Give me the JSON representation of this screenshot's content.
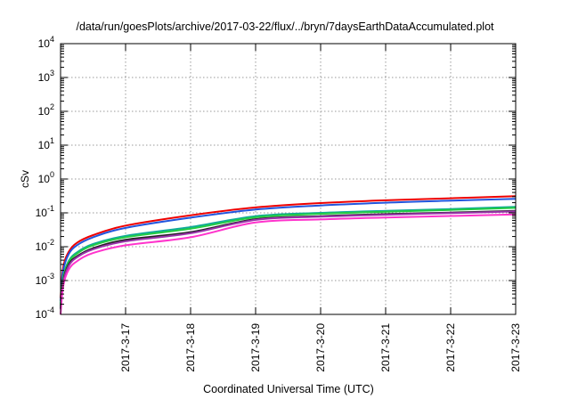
{
  "chart_data": {
    "type": "line",
    "title": "/data/run/goesPlots/archive/2017-03-22/flux/../bryn/7daysEarthDataAccumulated.plot",
    "xlabel": "Coordinated Universal Time (UTC)",
    "ylabel": "cSv",
    "yscale": "log",
    "ylim": [
      0.0001,
      10000
    ],
    "y_ticks": [
      {
        "base": "10",
        "exp": "-4",
        "value": 0.0001
      },
      {
        "base": "10",
        "exp": "-3",
        "value": 0.001
      },
      {
        "base": "10",
        "exp": "-2",
        "value": 0.01
      },
      {
        "base": "10",
        "exp": "-1",
        "value": 0.1
      },
      {
        "base": "10",
        "exp": "0",
        "value": 1
      },
      {
        "base": "10",
        "exp": "1",
        "value": 10
      },
      {
        "base": "10",
        "exp": "2",
        "value": 100
      },
      {
        "base": "10",
        "exp": "3",
        "value": 1000
      },
      {
        "base": "10",
        "exp": "4",
        "value": 10000
      }
    ],
    "xlim": [
      "2017-03-16",
      "2017-03-23"
    ],
    "x_ticks": [
      {
        "label": "2017-3-17",
        "date": "2017-03-17"
      },
      {
        "label": "2017-3-18",
        "date": "2017-03-18"
      },
      {
        "label": "2017-3-19",
        "date": "2017-03-19"
      },
      {
        "label": "2017-3-20",
        "date": "2017-03-20"
      },
      {
        "label": "2017-3-21",
        "date": "2017-03-21"
      },
      {
        "label": "2017-3-22",
        "date": "2017-03-22"
      },
      {
        "label": "2017-3-23",
        "date": "2017-03-23"
      }
    ],
    "grid": true,
    "x": [
      "2017-03-16 00:00",
      "2017-03-16 01:00",
      "2017-03-16 03:00",
      "2017-03-16 06:00",
      "2017-03-16 12:00",
      "2017-03-17 00:00",
      "2017-03-18 00:00",
      "2017-03-19 00:00",
      "2017-03-20 00:00",
      "2017-03-21 00:00",
      "2017-03-22 00:00",
      "2017-03-23 00:00"
    ],
    "series": [
      {
        "color": "#ee0000",
        "values": [
          0.0003,
          0.0025,
          0.007,
          0.013,
          0.022,
          0.042,
          0.085,
          0.145,
          0.195,
          0.235,
          0.27,
          0.31
        ]
      },
      {
        "color": "#2255dd",
        "values": [
          0.00025,
          0.002,
          0.006,
          0.011,
          0.019,
          0.036,
          0.072,
          0.125,
          0.165,
          0.2,
          0.23,
          0.26
        ]
      },
      {
        "color": "#11aa99",
        "values": [
          0.0002,
          0.0013,
          0.0038,
          0.0068,
          0.012,
          0.021,
          0.038,
          0.08,
          0.1,
          0.115,
          0.13,
          0.15
        ]
      },
      {
        "color": "#22cc44",
        "values": [
          0.00018,
          0.0012,
          0.0035,
          0.0062,
          0.011,
          0.019,
          0.034,
          0.074,
          0.094,
          0.108,
          0.122,
          0.14
        ]
      },
      {
        "color": "#222222",
        "values": [
          0.00015,
          0.001,
          0.003,
          0.0052,
          0.009,
          0.016,
          0.027,
          0.065,
          0.08,
          0.092,
          0.102,
          0.115
        ]
      },
      {
        "color": "#9933aa",
        "values": [
          0.00014,
          0.0009,
          0.0027,
          0.0048,
          0.0084,
          0.0145,
          0.025,
          0.062,
          0.077,
          0.088,
          0.098,
          0.11
        ]
      },
      {
        "color": "#ff33cc",
        "values": [
          0.0001,
          0.0007,
          0.0021,
          0.0037,
          0.0065,
          0.011,
          0.019,
          0.052,
          0.064,
          0.073,
          0.081,
          0.09
        ]
      }
    ]
  }
}
